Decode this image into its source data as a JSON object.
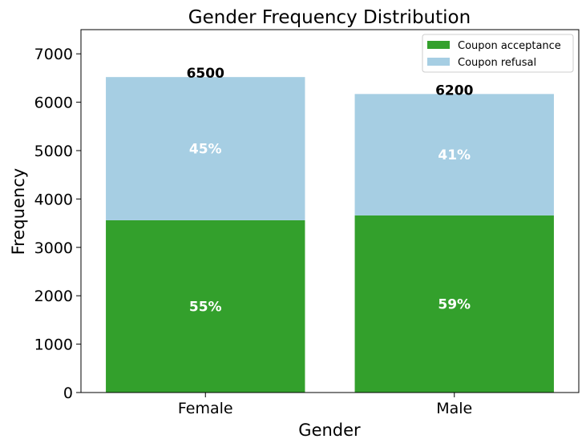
{
  "chart_data": {
    "type": "bar",
    "stacked": true,
    "title": "Gender Frequency Distribution",
    "xlabel": "Gender",
    "ylabel": "Frequency",
    "categories": [
      "Female",
      "Male"
    ],
    "ylim": [
      0,
      7500
    ],
    "yticks": [
      0,
      1000,
      2000,
      3000,
      4000,
      5000,
      6000,
      7000
    ],
    "grid": false,
    "legend_position": "top-right",
    "series": [
      {
        "name": "Coupon acceptance",
        "color": "#33a02c",
        "values": [
          3560,
          3660
        ],
        "labels": [
          "55%",
          "59%"
        ]
      },
      {
        "name": "Coupon refusal",
        "color": "#a6cee3",
        "values": [
          2960,
          2510
        ],
        "labels": [
          "45%",
          "41%"
        ]
      }
    ],
    "total_labels": [
      "6500",
      "6200"
    ]
  }
}
